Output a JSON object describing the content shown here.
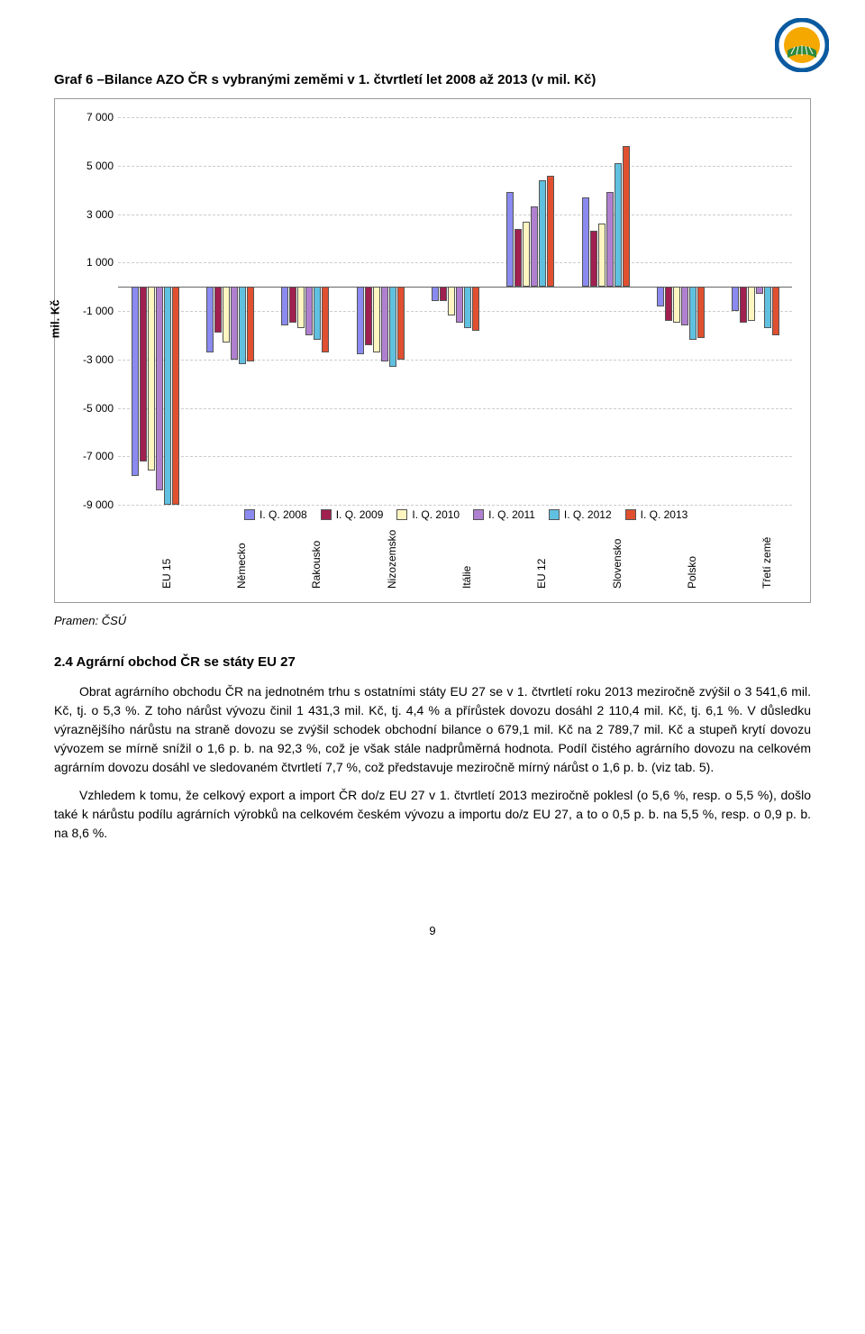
{
  "logo": {
    "outer_color": "#0a5aa0",
    "inner_color": "#f5a800",
    "field_color": "#2d8a3c"
  },
  "title": "Graf 6 –Bilance AZO ČR s vybranými zeměmi v 1. čtvrtletí let 2008 až 2013 (v mil. Kč)",
  "chart": {
    "type": "bar",
    "ylabel": "mil. Kč",
    "ylim": [
      -9000,
      7000
    ],
    "ytick_step": 2000,
    "yticks": [
      7000,
      5000,
      3000,
      1000,
      -1000,
      -3000,
      -5000,
      -7000,
      -9000
    ],
    "grid_color": "#cccccc",
    "zero_color": "#666666",
    "categories": [
      "EU 15",
      "Německo",
      "Rakousko",
      "Nizozemsko",
      "Itálie",
      "EU 12",
      "Slovensko",
      "Polsko",
      "Třetí země"
    ],
    "series": [
      {
        "label": "I. Q. 2008",
        "color": "#8a8af0"
      },
      {
        "label": "I. Q. 2009",
        "color": "#a02050"
      },
      {
        "label": "I. Q. 2010",
        "color": "#fff5c0"
      },
      {
        "label": "I. Q. 2011",
        "color": "#b080d0"
      },
      {
        "label": "I. Q. 2012",
        "color": "#60c0e0"
      },
      {
        "label": "I. Q. 2013",
        "color": "#e05030"
      }
    ],
    "data": [
      [
        -7800,
        -7200,
        -7600,
        -8400,
        -9000,
        -9000
      ],
      [
        -2700,
        -1900,
        -2300,
        -3000,
        -3200,
        -3100
      ],
      [
        -1600,
        -1500,
        -1700,
        -2000,
        -2200,
        -2700
      ],
      [
        -2800,
        -2400,
        -2700,
        -3100,
        -3300,
        -3000
      ],
      [
        -600,
        -600,
        -1200,
        -1500,
        -1700,
        -1800
      ],
      [
        3900,
        2400,
        2700,
        3300,
        4400,
        4600
      ],
      [
        3700,
        2300,
        2600,
        3900,
        5100,
        5800
      ],
      [
        -800,
        -1400,
        -1500,
        -1600,
        -2200,
        -2100
      ],
      [
        -1000,
        -1500,
        -1400,
        -300,
        -1700,
        -2000
      ]
    ],
    "background_color": "#ffffff",
    "label_fontsize": 12
  },
  "source": "Pramen: ČSÚ",
  "section": "2.4   Agrární obchod ČR se státy EU 27",
  "para1": "Obrat agrárního obchodu ČR na jednotném trhu s ostatními státy EU 27 se v 1. čtvrtletí roku 2013 meziročně zvýšil o 3 541,6 mil. Kč, tj. o 5,3 %. Z toho nárůst vývozu činil 1 431,3 mil. Kč, tj. 4,4 % a přírůstek dovozu dosáhl 2 110,4 mil. Kč, tj. 6,1 %. V důsledku výraznějšího nárůstu na straně dovozu se zvýšil schodek obchodní bilance o 679,1 mil. Kč na 2 789,7 mil. Kč a stupeň krytí dovozu vývozem se mírně snížil o 1,6 p. b. na 92,3 %, což je však stále nadprůměrná hodnota. Podíl čistého agrárního dovozu na celkovém agrárním dovozu dosáhl ve sledovaném čtvrtletí 7,7 %, což představuje meziročně mírný nárůst o 1,6 p. b. (viz tab. 5).",
  "para2": "Vzhledem k tomu, že celkový export a import ČR do/z EU 27 v 1. čtvrtletí 2013 meziročně poklesl (o 5,6 %, resp. o 5,5 %), došlo také k nárůstu podílu agrárních výrobků na celkovém českém vývozu a importu do/z EU 27, a to o 0,5 p. b. na 5,5 %, resp. o 0,9 p. b. na 8,6 %.",
  "page_number": "9"
}
